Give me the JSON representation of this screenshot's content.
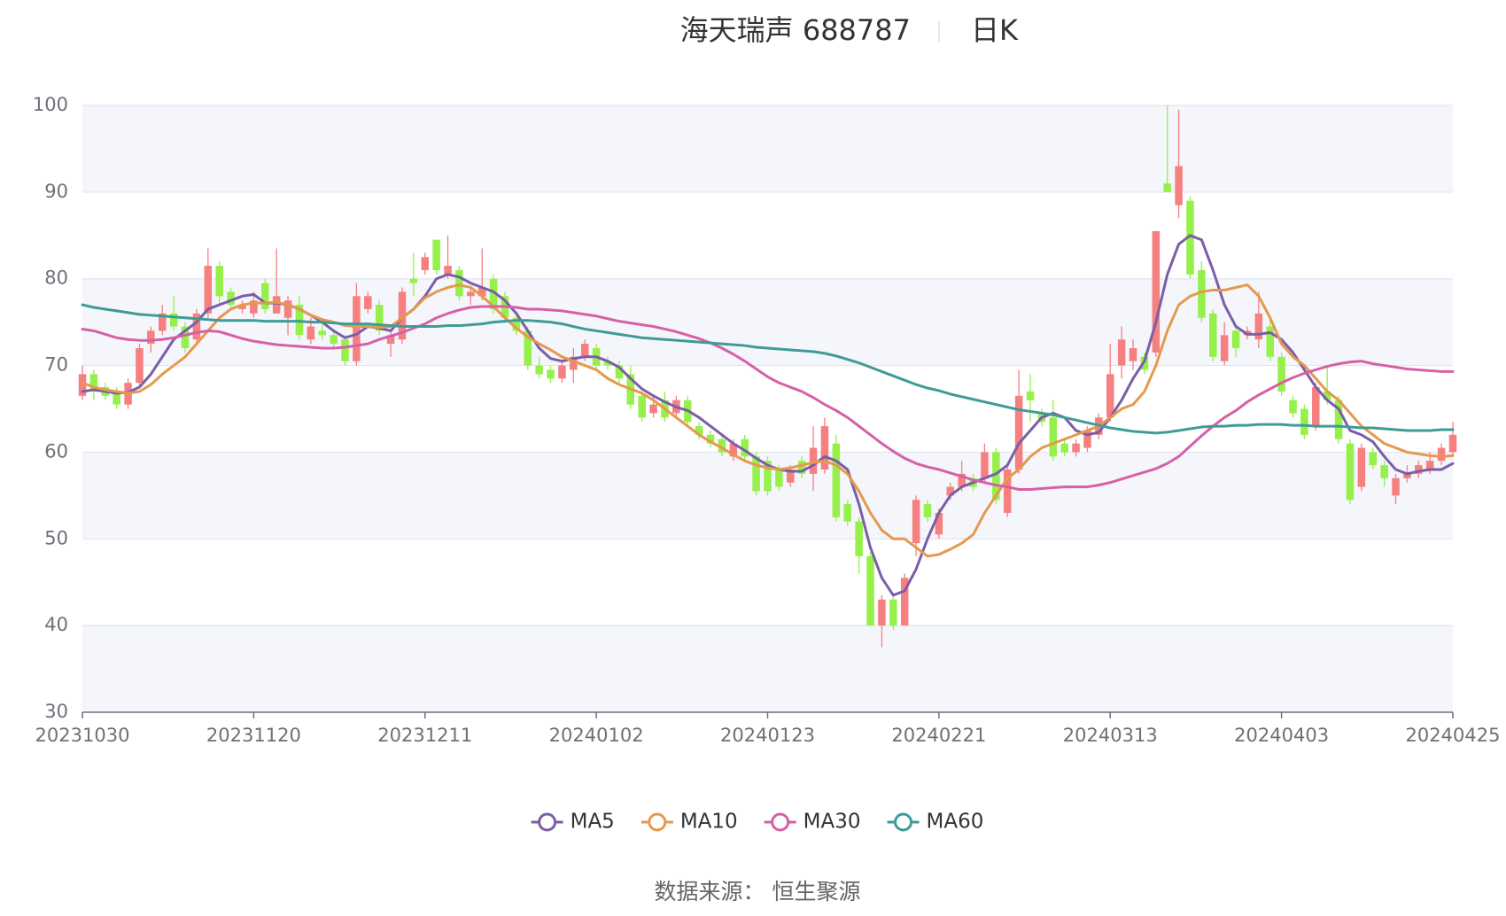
{
  "chart_data": {
    "type": "candlestick",
    "title": "海天瑞声 688787",
    "subtitle": "日K",
    "source": "数据来源： 恒生聚源",
    "categories": [
      "20231030",
      null,
      null,
      null,
      null,
      null,
      null,
      null,
      null,
      null,
      null,
      null,
      null,
      null,
      null,
      "20231120",
      null,
      null,
      null,
      null,
      null,
      null,
      null,
      null,
      null,
      null,
      null,
      null,
      null,
      null,
      "20231211",
      null,
      null,
      null,
      null,
      null,
      null,
      null,
      null,
      null,
      null,
      null,
      null,
      null,
      null,
      "20240102",
      null,
      null,
      null,
      null,
      null,
      null,
      null,
      null,
      null,
      null,
      null,
      null,
      null,
      null,
      "20240123",
      null,
      null,
      null,
      null,
      null,
      null,
      null,
      null,
      null,
      null,
      null,
      null,
      null,
      null,
      "20240221",
      null,
      null,
      null,
      null,
      null,
      null,
      null,
      null,
      null,
      null,
      null,
      null,
      null,
      null,
      "20240313",
      null,
      null,
      null,
      null,
      null,
      null,
      null,
      null,
      null,
      null,
      null,
      null,
      null,
      null,
      "20240403",
      null,
      null,
      null,
      null,
      null,
      null,
      null,
      null,
      null,
      null,
      null,
      null,
      null,
      null,
      "20240425"
    ],
    "open": [
      66.5,
      69,
      67.5,
      67,
      65.5,
      68,
      72.5,
      74,
      76,
      74.5,
      73,
      76,
      81.5,
      78.5,
      76.5,
      76,
      79.5,
      76,
      75.5,
      77,
      73,
      74,
      73.5,
      73,
      70.5,
      76.5,
      77,
      72.5,
      73,
      80,
      81,
      84.5,
      80.5,
      81,
      78,
      78,
      80,
      78,
      75.5,
      74,
      70,
      69.5,
      68.5,
      69.5,
      71,
      72,
      70.5,
      70,
      69,
      66.5,
      64.5,
      66,
      64.5,
      66,
      63,
      62,
      61.5,
      59.5,
      61.5,
      59.5,
      59,
      58,
      56.5,
      59,
      57.5,
      58,
      61,
      54,
      52,
      48,
      40,
      43,
      40,
      49.5,
      54,
      50.5,
      55,
      56,
      57,
      57,
      60,
      53,
      58,
      67,
      64.5,
      64,
      61,
      60,
      60.5,
      62,
      64,
      70,
      70.5,
      71,
      71.5,
      91,
      88.5,
      89,
      81,
      76,
      70.5,
      74,
      73.5,
      73,
      74.5,
      71,
      66,
      65,
      63,
      67,
      66,
      61,
      56,
      60,
      58.5,
      55,
      57,
      57.5,
      58,
      59,
      60
    ],
    "close": [
      69,
      67,
      66.5,
      65.5,
      68,
      72,
      74,
      76,
      74.5,
      72,
      76,
      81.5,
      78,
      77,
      77,
      77.5,
      76.5,
      78,
      77.5,
      73.5,
      74.5,
      73.5,
      72.5,
      70.5,
      78,
      78,
      74,
      73.5,
      78.5,
      79.5,
      82.5,
      81,
      81.5,
      78,
      78.5,
      79,
      76.5,
      75.5,
      74,
      70,
      69,
      68.5,
      70,
      71,
      72.5,
      70,
      70,
      68.5,
      65.5,
      64,
      65.5,
      64,
      66,
      63.5,
      62,
      61,
      60,
      61,
      59.5,
      55.5,
      55.5,
      56,
      58,
      57.5,
      60.5,
      63,
      52.5,
      52,
      48,
      40,
      43,
      40,
      45.5,
      54.5,
      52.5,
      53,
      56,
      57.5,
      56,
      60,
      54.5,
      58,
      66.5,
      66,
      63.5,
      59.5,
      60,
      61,
      62.5,
      64,
      69,
      73,
      72,
      69.5,
      85.5,
      90,
      93,
      80.5,
      75.5,
      71,
      73.5,
      72,
      74,
      76,
      71,
      67,
      64.5,
      62,
      67.5,
      66,
      61.5,
      54.5,
      60.5,
      58.5,
      57,
      57,
      57.5,
      58.5,
      59,
      60.5,
      62
    ],
    "low": [
      66,
      66,
      66,
      65,
      65,
      67.5,
      71.5,
      73.5,
      74,
      71.5,
      72.5,
      75.5,
      77,
      76.5,
      76,
      75.5,
      76,
      76,
      73.5,
      73,
      72.5,
      73,
      72,
      70,
      70,
      76,
      73.5,
      71,
      72.5,
      78,
      80.5,
      80.5,
      80,
      77.5,
      77,
      77.5,
      76,
      75,
      73.5,
      69.5,
      68.5,
      68,
      68,
      68,
      70.5,
      69.5,
      69.5,
      68,
      65,
      63.5,
      64,
      63.5,
      64,
      63,
      61.5,
      60.5,
      59.5,
      59,
      59,
      55,
      55,
      55.5,
      56,
      57,
      55.5,
      57.5,
      52,
      51.5,
      46,
      40,
      37.5,
      39.5,
      40,
      48,
      52,
      50,
      54.5,
      55.5,
      55.5,
      56.5,
      54,
      52.5,
      57.5,
      63.5,
      63,
      59,
      59.5,
      59.5,
      60,
      61.5,
      63.5,
      68.5,
      69.5,
      69,
      71,
      90,
      87,
      80,
      75,
      70.5,
      70,
      71,
      73,
      72,
      70.5,
      66.5,
      64,
      61.5,
      62.5,
      65.5,
      61,
      54,
      55.5,
      58,
      56,
      54,
      56.5,
      57,
      57.5,
      58.5,
      59.5
    ],
    "high": [
      70,
      69.5,
      68,
      67.5,
      68.5,
      72.5,
      74.5,
      77,
      78,
      75,
      76.5,
      83.5,
      82,
      79,
      77.5,
      78.5,
      80,
      83.5,
      78,
      78,
      75.5,
      75,
      74,
      73.5,
      79.5,
      78.5,
      77.5,
      74,
      79,
      83,
      83,
      84.5,
      85,
      81.5,
      79,
      83.5,
      80.5,
      78.5,
      76,
      74.5,
      71,
      70,
      70.5,
      72,
      73,
      72.5,
      71,
      70.5,
      70,
      67,
      66.5,
      67,
      66.5,
      66.5,
      63.5,
      62.5,
      62,
      61.5,
      62,
      60,
      59.5,
      58.5,
      58.5,
      59.5,
      63,
      64,
      62,
      54.5,
      52.5,
      48.5,
      43.5,
      43.5,
      46,
      55,
      54.5,
      53.5,
      56.5,
      59,
      57.5,
      61,
      60.5,
      58.5,
      69.5,
      69,
      65,
      66,
      61.5,
      61.5,
      63,
      64.5,
      72.5,
      74.5,
      73,
      71.5,
      85.5,
      100,
      99.5,
      89.5,
      82,
      76.5,
      75,
      74.5,
      74.5,
      78.5,
      75.5,
      71.5,
      66.5,
      65.5,
      68,
      70,
      66.5,
      61.5,
      61,
      60.5,
      59,
      57.5,
      58.5,
      59,
      60,
      61,
      63.5
    ],
    "up_color": "#f67f80",
    "down_color": "#95f04a",
    "series": [
      {
        "name": "MA5",
        "color": "#7b5ea7",
        "values": [
          67,
          67.2,
          67,
          66.8,
          66.9,
          67.5,
          69,
          71,
          73,
          74,
          75,
          76.5,
          77,
          77.5,
          78,
          78.2,
          77.2,
          77.2,
          77,
          76.5,
          75.8,
          75,
          74,
          73.2,
          73.6,
          74.5,
          74.3,
          74,
          75.5,
          76.5,
          78,
          80,
          80.5,
          80.2,
          79.5,
          79,
          78.5,
          77.5,
          76,
          74,
          72,
          70.8,
          70.5,
          70.8,
          71,
          71,
          70.5,
          69.8,
          68.5,
          67.3,
          66.5,
          65.8,
          65.2,
          64.8,
          64,
          63,
          62,
          61,
          60.2,
          59.3,
          58.5,
          58,
          57.8,
          57.8,
          58.5,
          59.5,
          59,
          58,
          54,
          49,
          45.5,
          43.5,
          44,
          46.5,
          50,
          53,
          55,
          56,
          56.5,
          57,
          57.5,
          58.5,
          61,
          62.5,
          64,
          64.5,
          64,
          62.5,
          62,
          62.3,
          64,
          66,
          68.5,
          70.5,
          75,
          80.5,
          84,
          85,
          84.5,
          81,
          77,
          74.5,
          73.6,
          73.6,
          73.8,
          73,
          71.5,
          69.5,
          67.5,
          66,
          65,
          62.5,
          62,
          61.2,
          59.5,
          58,
          57.5,
          57.8,
          58,
          58,
          58.7
        ]
      },
      {
        "name": "MA10",
        "color": "#e5994e",
        "values": [
          68,
          67.5,
          67.2,
          67,
          66.8,
          67,
          67.8,
          69,
          70,
          71,
          72.5,
          74,
          75.5,
          76.5,
          77,
          77.2,
          77.2,
          77.3,
          77,
          76.5,
          75.8,
          75.3,
          75,
          74.6,
          74.5,
          74.5,
          74.4,
          74.5,
          75.5,
          76.5,
          77.8,
          78.5,
          79,
          79.3,
          79,
          78,
          76.8,
          75.5,
          74.3,
          73.3,
          72.5,
          71.8,
          71,
          70.5,
          70,
          69.5,
          68.5,
          67.8,
          67.3,
          66.8,
          66,
          65,
          64,
          63,
          62,
          61.2,
          60.5,
          59.7,
          59,
          58.5,
          58.2,
          58,
          58.2,
          58.5,
          58.8,
          59,
          58.5,
          57.5,
          55.5,
          53,
          51,
          50,
          50,
          49,
          48,
          48.2,
          48.8,
          49.5,
          50.5,
          53,
          55,
          57,
          58,
          59.5,
          60.5,
          61,
          61.5,
          62,
          62.5,
          63,
          64,
          65,
          65.5,
          67,
          70,
          74,
          77,
          78,
          78.5,
          78.7,
          78.7,
          79,
          79.3,
          78,
          75.5,
          72.5,
          71,
          70,
          68.5,
          67,
          66,
          64.5,
          63,
          62,
          61,
          60.5,
          60,
          59.8,
          59.6,
          59.5,
          59.6
        ]
      },
      {
        "name": "MA30",
        "color": "#d660a8",
        "values": [
          74.2,
          74,
          73.6,
          73.2,
          73,
          72.9,
          72.9,
          73,
          73.2,
          73.5,
          73.8,
          74,
          73.9,
          73.5,
          73.1,
          72.8,
          72.6,
          72.4,
          72.3,
          72.2,
          72.1,
          72,
          72,
          72.1,
          72.3,
          72.5,
          73,
          73.4,
          73.8,
          74.3,
          74.8,
          75.5,
          76,
          76.4,
          76.7,
          76.8,
          76.8,
          76.8,
          76.7,
          76.5,
          76.5,
          76.4,
          76.3,
          76.1,
          75.9,
          75.7,
          75.4,
          75.1,
          74.9,
          74.7,
          74.5,
          74.2,
          73.9,
          73.5,
          73.1,
          72.6,
          72,
          71.3,
          70.5,
          69.6,
          68.7,
          68,
          67.5,
          67,
          66.3,
          65.5,
          64.8,
          64,
          63,
          62,
          61,
          60.1,
          59.3,
          58.7,
          58.3,
          58,
          57.6,
          57.2,
          56.8,
          56.5,
          56.2,
          56,
          55.7,
          55.7,
          55.8,
          55.9,
          56,
          56,
          56,
          56.2,
          56.5,
          56.9,
          57.3,
          57.7,
          58.1,
          58.7,
          59.5,
          60.7,
          61.9,
          63,
          64,
          64.8,
          65.8,
          66.6,
          67.3,
          68,
          68.6,
          69.1,
          69.5,
          69.9,
          70.2,
          70.4,
          70.5,
          70.2,
          70,
          69.8,
          69.6,
          69.5,
          69.4,
          69.3,
          69.3
        ]
      },
      {
        "name": "MA60",
        "color": "#3f9b97",
        "values": [
          77,
          76.7,
          76.5,
          76.3,
          76.1,
          75.9,
          75.8,
          75.7,
          75.6,
          75.5,
          75.4,
          75.3,
          75.2,
          75.2,
          75.2,
          75.2,
          75.1,
          75.1,
          75.1,
          75.1,
          75,
          75,
          74.9,
          74.8,
          74.8,
          74.8,
          74.7,
          74.6,
          74.5,
          74.5,
          74.5,
          74.5,
          74.6,
          74.6,
          74.7,
          74.8,
          75,
          75.1,
          75.2,
          75.2,
          75.1,
          75,
          74.8,
          74.5,
          74.2,
          74,
          73.8,
          73.6,
          73.4,
          73.2,
          73.1,
          73,
          72.9,
          72.8,
          72.7,
          72.6,
          72.5,
          72.4,
          72.3,
          72.1,
          72,
          71.9,
          71.8,
          71.7,
          71.6,
          71.4,
          71.1,
          70.7,
          70.3,
          69.8,
          69.3,
          68.8,
          68.3,
          67.8,
          67.4,
          67.1,
          66.7,
          66.4,
          66.1,
          65.8,
          65.5,
          65.2,
          64.9,
          64.7,
          64.5,
          64.3,
          64,
          63.7,
          63.4,
          63.1,
          62.8,
          62.6,
          62.4,
          62.3,
          62.2,
          62.3,
          62.5,
          62.7,
          62.9,
          63,
          63,
          63.1,
          63.1,
          63.2,
          63.2,
          63.2,
          63.1,
          63.1,
          63,
          63,
          63,
          62.9,
          62.8,
          62.8,
          62.7,
          62.6,
          62.5,
          62.5,
          62.5,
          62.6,
          62.6
        ]
      }
    ],
    "ylim": [
      30,
      100
    ],
    "yticks": [
      30,
      40,
      50,
      60,
      70,
      80,
      90,
      100
    ],
    "grid": true,
    "split_area": true,
    "legend": "bottom"
  }
}
